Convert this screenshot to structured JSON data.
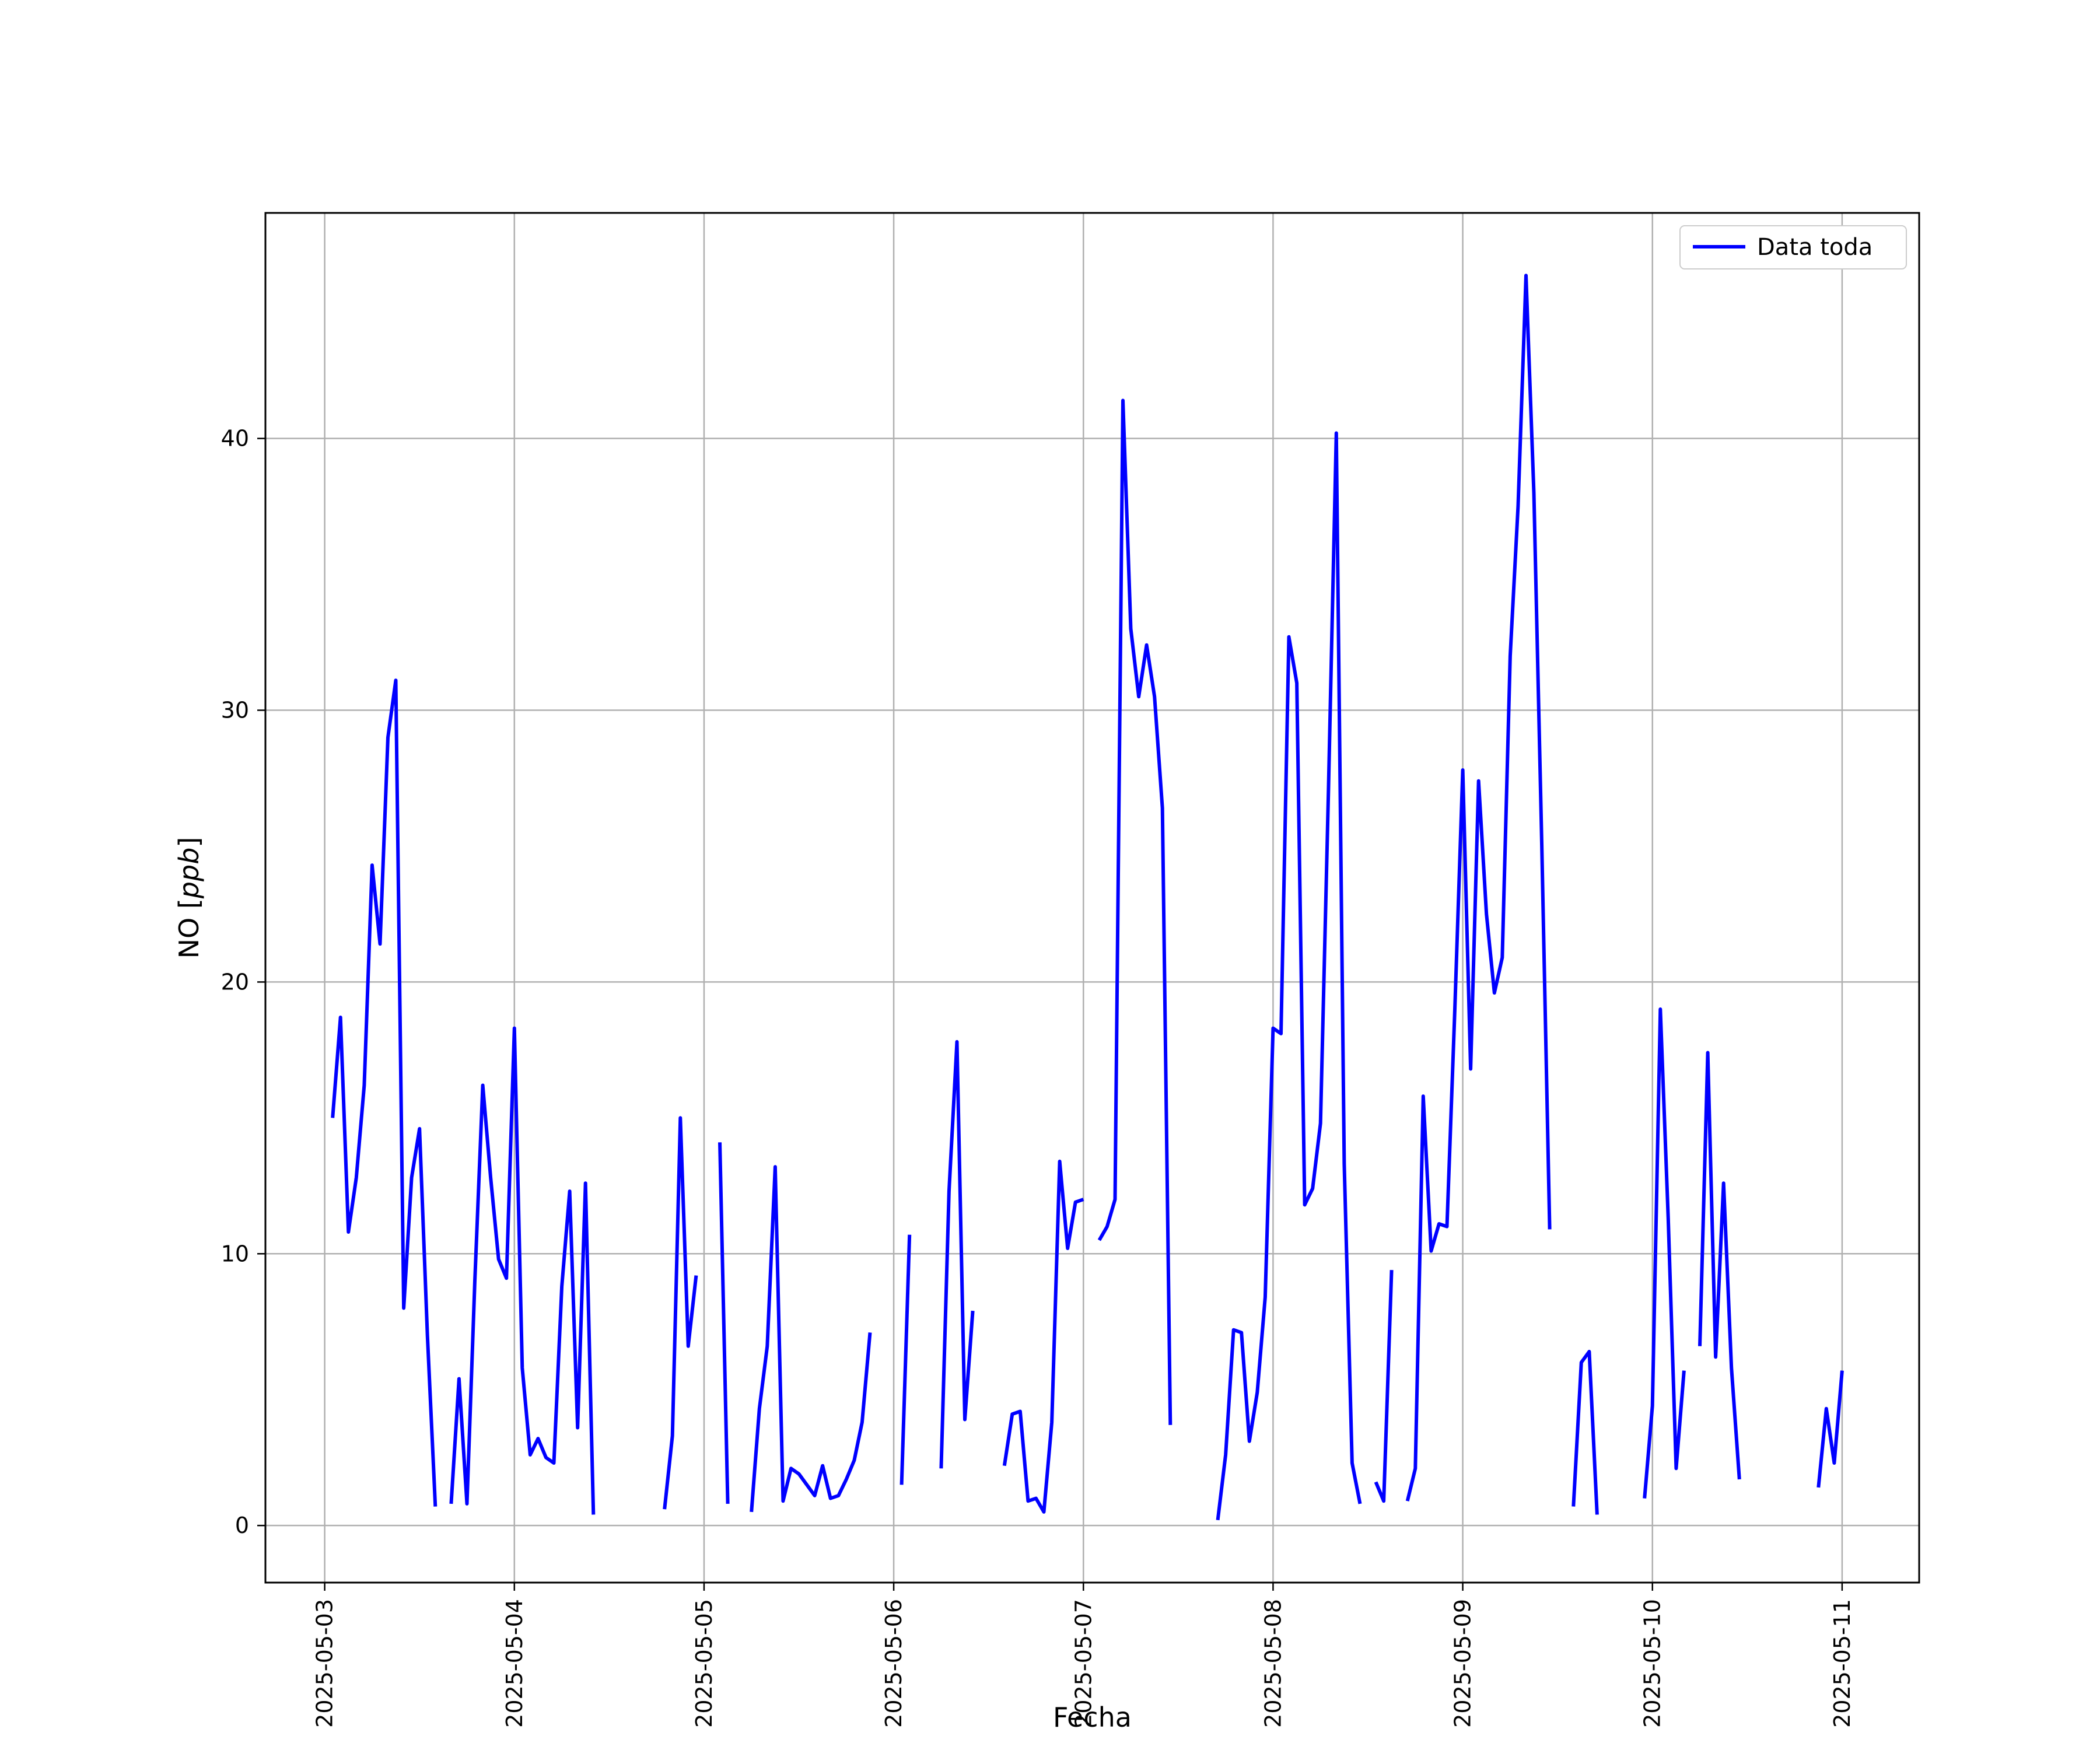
{
  "chart_data": {
    "type": "line",
    "xlabel": "Fecha",
    "ylabel_main": "NO [",
    "ylabel_unit": "ppb",
    "ylabel_close": "]",
    "x_tick_labels": [
      "2025-05-03",
      "2025-05-04",
      "2025-05-05",
      "2025-05-06",
      "2025-05-07",
      "2025-05-08",
      "2025-05-09",
      "2025-05-10",
      "2025-05-11"
    ],
    "y_ticks": [
      0,
      10,
      20,
      30,
      40
    ],
    "xlim": [
      "2025-05-02T16:30",
      "2025-05-11T09:45"
    ],
    "ylim": [
      -2.1,
      48.3
    ],
    "grid": true,
    "legend_position": "top-right",
    "series": [
      {
        "name": "Data toda",
        "color": "#0000ff",
        "segments": [
          [
            [
              "2025-05-03T01:00",
              15.0
            ],
            [
              "2025-05-03T02:00",
              18.7
            ],
            [
              "2025-05-03T03:00",
              10.8
            ],
            [
              "2025-05-03T04:00",
              12.8
            ],
            [
              "2025-05-03T05:00",
              16.2
            ],
            [
              "2025-05-03T06:00",
              24.3
            ],
            [
              "2025-05-03T07:00",
              21.4
            ],
            [
              "2025-05-03T08:00",
              29.0
            ],
            [
              "2025-05-03T09:00",
              31.1
            ],
            [
              "2025-05-03T10:00",
              8.0
            ],
            [
              "2025-05-03T11:00",
              12.8
            ],
            [
              "2025-05-03T12:00",
              14.6
            ],
            [
              "2025-05-03T13:00",
              7.0
            ],
            [
              "2025-05-03T14:00",
              0.7
            ]
          ],
          [
            [
              "2025-05-03T16:00",
              0.8
            ],
            [
              "2025-05-03T17:00",
              5.4
            ],
            [
              "2025-05-03T18:00",
              0.8
            ],
            [
              "2025-05-03T19:00",
              9.0
            ],
            [
              "2025-05-03T20:00",
              16.2
            ],
            [
              "2025-05-03T21:00",
              12.8
            ],
            [
              "2025-05-03T22:00",
              9.8
            ],
            [
              "2025-05-03T23:00",
              9.1
            ],
            [
              "2025-05-04T00:00",
              18.3
            ],
            [
              "2025-05-04T01:00",
              5.8
            ],
            [
              "2025-05-04T02:00",
              2.6
            ],
            [
              "2025-05-04T03:00",
              3.2
            ],
            [
              "2025-05-04T04:00",
              2.5
            ],
            [
              "2025-05-04T05:00",
              2.3
            ],
            [
              "2025-05-04T06:00",
              8.8
            ],
            [
              "2025-05-04T07:00",
              12.3
            ],
            [
              "2025-05-04T08:00",
              3.6
            ],
            [
              "2025-05-04T09:00",
              12.6
            ],
            [
              "2025-05-04T10:00",
              0.4
            ]
          ],
          [
            [
              "2025-05-04T19:00",
              0.6
            ],
            [
              "2025-05-04T20:00",
              3.3
            ],
            [
              "2025-05-04T21:00",
              15.0
            ],
            [
              "2025-05-04T22:00",
              6.6
            ],
            [
              "2025-05-04T23:00",
              9.2
            ]
          ],
          [
            [
              "2025-05-05T02:00",
              14.1
            ],
            [
              "2025-05-05T03:00",
              0.8
            ]
          ],
          [
            [
              "2025-05-05T06:00",
              0.5
            ],
            [
              "2025-05-05T07:00",
              4.3
            ],
            [
              "2025-05-05T08:00",
              6.6
            ],
            [
              "2025-05-05T09:00",
              13.2
            ],
            [
              "2025-05-05T10:00",
              0.9
            ],
            [
              "2025-05-05T11:00",
              2.1
            ],
            [
              "2025-05-05T12:00",
              1.9
            ],
            [
              "2025-05-05T13:00",
              1.5
            ],
            [
              "2025-05-05T14:00",
              1.1
            ],
            [
              "2025-05-05T15:00",
              2.2
            ],
            [
              "2025-05-05T16:00",
              1.0
            ],
            [
              "2025-05-05T17:00",
              1.1
            ],
            [
              "2025-05-05T18:00",
              1.7
            ],
            [
              "2025-05-05T19:00",
              2.4
            ],
            [
              "2025-05-05T20:00",
              3.8
            ],
            [
              "2025-05-05T21:00",
              7.1
            ]
          ],
          [
            [
              "2025-05-06T01:00",
              1.5
            ],
            [
              "2025-05-06T02:00",
              10.7
            ]
          ],
          [
            [
              "2025-05-06T06:00",
              2.1
            ],
            [
              "2025-05-06T07:00",
              12.3
            ],
            [
              "2025-05-06T08:00",
              17.8
            ],
            [
              "2025-05-06T09:00",
              3.9
            ],
            [
              "2025-05-06T10:00",
              7.9
            ]
          ],
          [
            [
              "2025-05-06T14:00",
              2.2
            ],
            [
              "2025-05-06T15:00",
              4.1
            ],
            [
              "2025-05-06T16:00",
              4.2
            ],
            [
              "2025-05-06T17:00",
              0.9
            ],
            [
              "2025-05-06T18:00",
              1.0
            ],
            [
              "2025-05-06T19:00",
              0.5
            ],
            [
              "2025-05-06T20:00",
              3.8
            ],
            [
              "2025-05-06T21:00",
              13.4
            ],
            [
              "2025-05-06T22:00",
              10.2
            ],
            [
              "2025-05-06T23:00",
              11.9
            ],
            [
              "2025-05-07T00:00",
              12.0
            ]
          ],
          [
            [
              "2025-05-07T02:00",
              10.5
            ],
            [
              "2025-05-07T03:00",
              11.0
            ],
            [
              "2025-05-07T04:00",
              12.0
            ],
            [
              "2025-05-07T05:00",
              41.4
            ],
            [
              "2025-05-07T06:00",
              33.0
            ],
            [
              "2025-05-07T07:00",
              30.5
            ],
            [
              "2025-05-07T08:00",
              32.4
            ],
            [
              "2025-05-07T09:00",
              30.5
            ],
            [
              "2025-05-07T10:00",
              26.4
            ],
            [
              "2025-05-07T11:00",
              3.7
            ]
          ],
          [
            [
              "2025-05-07T17:00",
              0.2
            ],
            [
              "2025-05-07T18:00",
              2.6
            ],
            [
              "2025-05-07T19:00",
              7.2
            ],
            [
              "2025-05-07T20:00",
              7.1
            ],
            [
              "2025-05-07T21:00",
              3.1
            ],
            [
              "2025-05-07T22:00",
              4.9
            ],
            [
              "2025-05-07T23:00",
              8.4
            ],
            [
              "2025-05-08T00:00",
              18.3
            ],
            [
              "2025-05-08T01:00",
              18.1
            ],
            [
              "2025-05-08T02:00",
              32.7
            ],
            [
              "2025-05-08T03:00",
              31.0
            ],
            [
              "2025-05-08T04:00",
              11.8
            ],
            [
              "2025-05-08T05:00",
              12.4
            ],
            [
              "2025-05-08T06:00",
              14.8
            ],
            [
              "2025-05-08T07:00",
              27.0
            ],
            [
              "2025-05-08T08:00",
              40.2
            ],
            [
              "2025-05-08T09:00",
              13.3
            ],
            [
              "2025-05-08T10:00",
              2.3
            ],
            [
              "2025-05-08T11:00",
              0.8
            ]
          ],
          [
            [
              "2025-05-08T13:00",
              1.6
            ],
            [
              "2025-05-08T14:00",
              0.9
            ],
            [
              "2025-05-08T15:00",
              9.4
            ]
          ],
          [
            [
              "2025-05-08T17:00",
              0.9
            ],
            [
              "2025-05-08T18:00",
              2.1
            ],
            [
              "2025-05-08T19:00",
              15.8
            ],
            [
              "2025-05-08T20:00",
              10.1
            ],
            [
              "2025-05-08T21:00",
              11.1
            ],
            [
              "2025-05-08T22:00",
              11.0
            ],
            [
              "2025-05-08T23:00",
              19.0
            ],
            [
              "2025-05-09T00:00",
              27.8
            ],
            [
              "2025-05-09T01:00",
              16.8
            ],
            [
              "2025-05-09T02:00",
              27.4
            ],
            [
              "2025-05-09T03:00",
              22.5
            ],
            [
              "2025-05-09T04:00",
              19.6
            ],
            [
              "2025-05-09T05:00",
              20.9
            ],
            [
              "2025-05-09T06:00",
              32.0
            ],
            [
              "2025-05-09T07:00",
              37.5
            ],
            [
              "2025-05-09T08:00",
              46.0
            ],
            [
              "2025-05-09T09:00",
              38.0
            ],
            [
              "2025-05-09T10:00",
              25.0
            ],
            [
              "2025-05-09T11:00",
              10.9
            ]
          ],
          [
            [
              "2025-05-09T14:00",
              0.7
            ],
            [
              "2025-05-09T15:00",
              6.0
            ],
            [
              "2025-05-09T16:00",
              6.4
            ],
            [
              "2025-05-09T17:00",
              0.4
            ]
          ],
          [
            [
              "2025-05-09T23:00",
              1.0
            ],
            [
              "2025-05-10T00:00",
              4.4
            ],
            [
              "2025-05-10T01:00",
              19.0
            ],
            [
              "2025-05-10T02:00",
              11.3
            ],
            [
              "2025-05-10T03:00",
              2.1
            ],
            [
              "2025-05-10T04:00",
              5.7
            ]
          ],
          [
            [
              "2025-05-10T06:00",
              6.6
            ],
            [
              "2025-05-10T07:00",
              17.4
            ],
            [
              "2025-05-10T08:00",
              6.2
            ],
            [
              "2025-05-10T09:00",
              12.6
            ],
            [
              "2025-05-10T10:00",
              5.8
            ],
            [
              "2025-05-10T11:00",
              1.7
            ]
          ],
          [
            [
              "2025-05-10T21:00",
              1.4
            ],
            [
              "2025-05-10T22:00",
              4.3
            ],
            [
              "2025-05-10T23:00",
              2.3
            ],
            [
              "2025-05-11T00:00",
              5.7
            ]
          ]
        ]
      }
    ]
  }
}
